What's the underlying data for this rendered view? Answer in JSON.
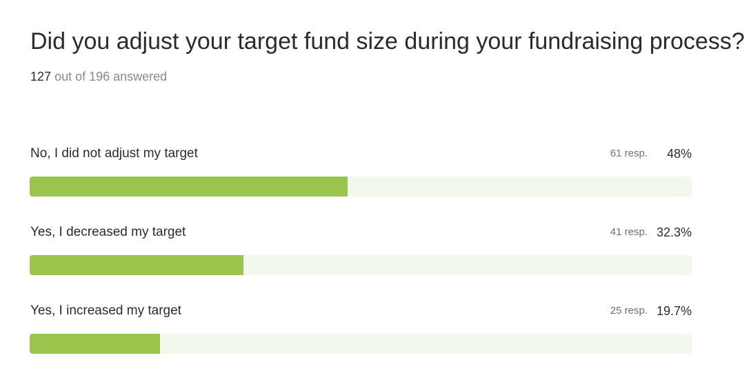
{
  "question": "Did you adjust your target fund size during your fundraising process?",
  "answered": {
    "count": "127",
    "suffix": "out of 196 answered"
  },
  "colors": {
    "bar_fill": "#9bc44c",
    "bar_track": "#f3f8ec"
  },
  "chart_data": {
    "type": "bar",
    "orientation": "horizontal",
    "title": "Did you adjust your target fund size during your fundraising process?",
    "categories": [
      "No, I did not adjust my target",
      "Yes, I decreased my target",
      "Yes, I increased my target"
    ],
    "values": [
      48,
      32.3,
      19.7
    ],
    "responses": [
      61,
      41,
      25
    ],
    "xlim": [
      0,
      100
    ],
    "grid": false,
    "legend": "none",
    "rows": [
      {
        "label": "No, I did not adjust my target",
        "resp": "61 resp.",
        "pct": "48%",
        "value": 48
      },
      {
        "label": "Yes, I decreased my target",
        "resp": "41 resp.",
        "pct": "32.3%",
        "value": 32.3
      },
      {
        "label": "Yes, I increased my target",
        "resp": "25 resp.",
        "pct": "19.7%",
        "value": 19.7
      }
    ]
  }
}
